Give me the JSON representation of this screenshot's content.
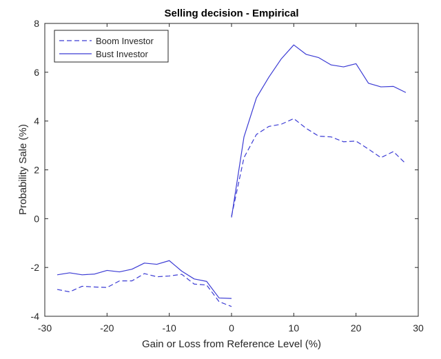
{
  "chart_data": {
    "type": "line",
    "title": "Selling decision - Empirical",
    "xlabel": "Gain or Loss from Reference Level (%)",
    "ylabel": "Probability Sale (%)",
    "xlim": [
      -30,
      30
    ],
    "ylim": [
      -4,
      8
    ],
    "xticks": [
      -30,
      -20,
      -10,
      0,
      10,
      20,
      30
    ],
    "yticks": [
      -4,
      -2,
      0,
      2,
      4,
      6,
      8
    ],
    "legend_position": "top-left",
    "colors": {
      "series": "#3a3ad4",
      "axis": "#262626",
      "background": "#ffffff"
    },
    "series": [
      {
        "name": "Boom Investor",
        "style": "dashed",
        "segments": [
          {
            "x": [
              -28,
              -26,
              -24,
              -22,
              -20,
              -18,
              -16,
              -14,
              -12,
              -10,
              -8,
              -6,
              -4,
              -2,
              0
            ],
            "y": [
              -2.9,
              -3.0,
              -2.77,
              -2.8,
              -2.82,
              -2.55,
              -2.55,
              -2.25,
              -2.38,
              -2.35,
              -2.28,
              -2.68,
              -2.72,
              -3.4,
              -3.6
            ]
          },
          {
            "x": [
              0,
              2,
              4,
              6,
              8,
              10,
              12,
              14,
              16,
              18,
              20,
              22,
              24,
              26,
              28
            ],
            "y": [
              0.1,
              2.5,
              3.45,
              3.78,
              3.87,
              4.1,
              3.7,
              3.38,
              3.35,
              3.15,
              3.18,
              2.85,
              2.5,
              2.75,
              2.25
            ]
          }
        ]
      },
      {
        "name": "Bust Investor",
        "style": "solid",
        "segments": [
          {
            "x": [
              -28,
              -26,
              -24,
              -22,
              -20,
              -18,
              -16,
              -14,
              -12,
              -10,
              -8,
              -6,
              -4,
              -2,
              0
            ],
            "y": [
              -2.3,
              -2.22,
              -2.3,
              -2.27,
              -2.12,
              -2.18,
              -2.07,
              -1.82,
              -1.87,
              -1.72,
              -2.15,
              -2.47,
              -2.57,
              -3.25,
              -3.27
            ]
          },
          {
            "x": [
              0,
              2,
              4,
              6,
              8,
              10,
              12,
              14,
              16,
              18,
              20,
              22,
              24,
              26,
              28
            ],
            "y": [
              0.05,
              3.35,
              4.95,
              5.8,
              6.55,
              7.12,
              6.73,
              6.6,
              6.3,
              6.22,
              6.35,
              5.55,
              5.4,
              5.42,
              5.17
            ]
          }
        ]
      }
    ]
  }
}
